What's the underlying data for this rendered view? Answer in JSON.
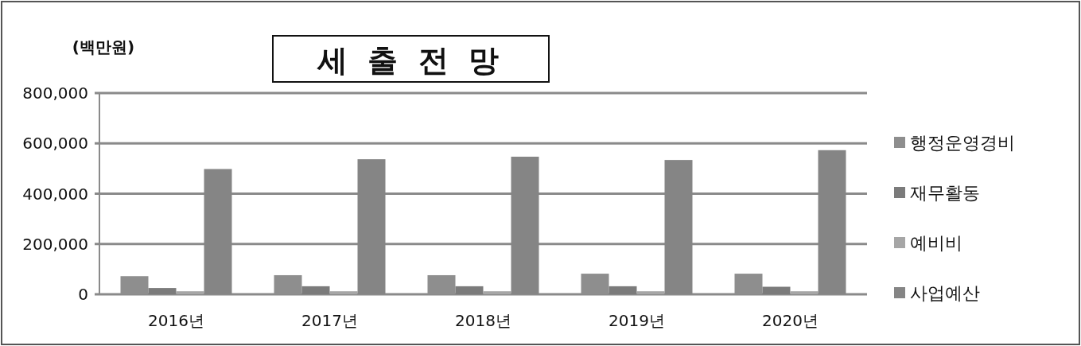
{
  "chart_data": {
    "type": "bar",
    "title": "세 출 전 망",
    "ylabel": "(백만원)",
    "categories": [
      "2016년",
      "2017년",
      "2018년",
      "2019년",
      "2020년"
    ],
    "series": [
      {
        "name": "행정운영경비",
        "color": "#8e8e8e",
        "values": [
          72000,
          76000,
          76000,
          82000,
          82000
        ]
      },
      {
        "name": "재무활동",
        "color": "#7b7b7b",
        "values": [
          25000,
          32000,
          32000,
          32000,
          30000
        ]
      },
      {
        "name": "예비비",
        "color": "#a6a6a6",
        "values": [
          12000,
          12000,
          12000,
          12000,
          12000
        ]
      },
      {
        "name": "사업예산",
        "color": "#858585",
        "values": [
          498000,
          537000,
          547000,
          534000,
          573000
        ]
      }
    ],
    "ylim": [
      0,
      800000
    ],
    "yticks": [
      {
        "value": 0,
        "label": "0"
      },
      {
        "value": 200000,
        "label": "200,000"
      },
      {
        "value": 400000,
        "label": "400,000"
      },
      {
        "value": 600000,
        "label": "600,000"
      },
      {
        "value": 800000,
        "label": "800,000"
      }
    ],
    "grid": "y",
    "legend": "right"
  }
}
